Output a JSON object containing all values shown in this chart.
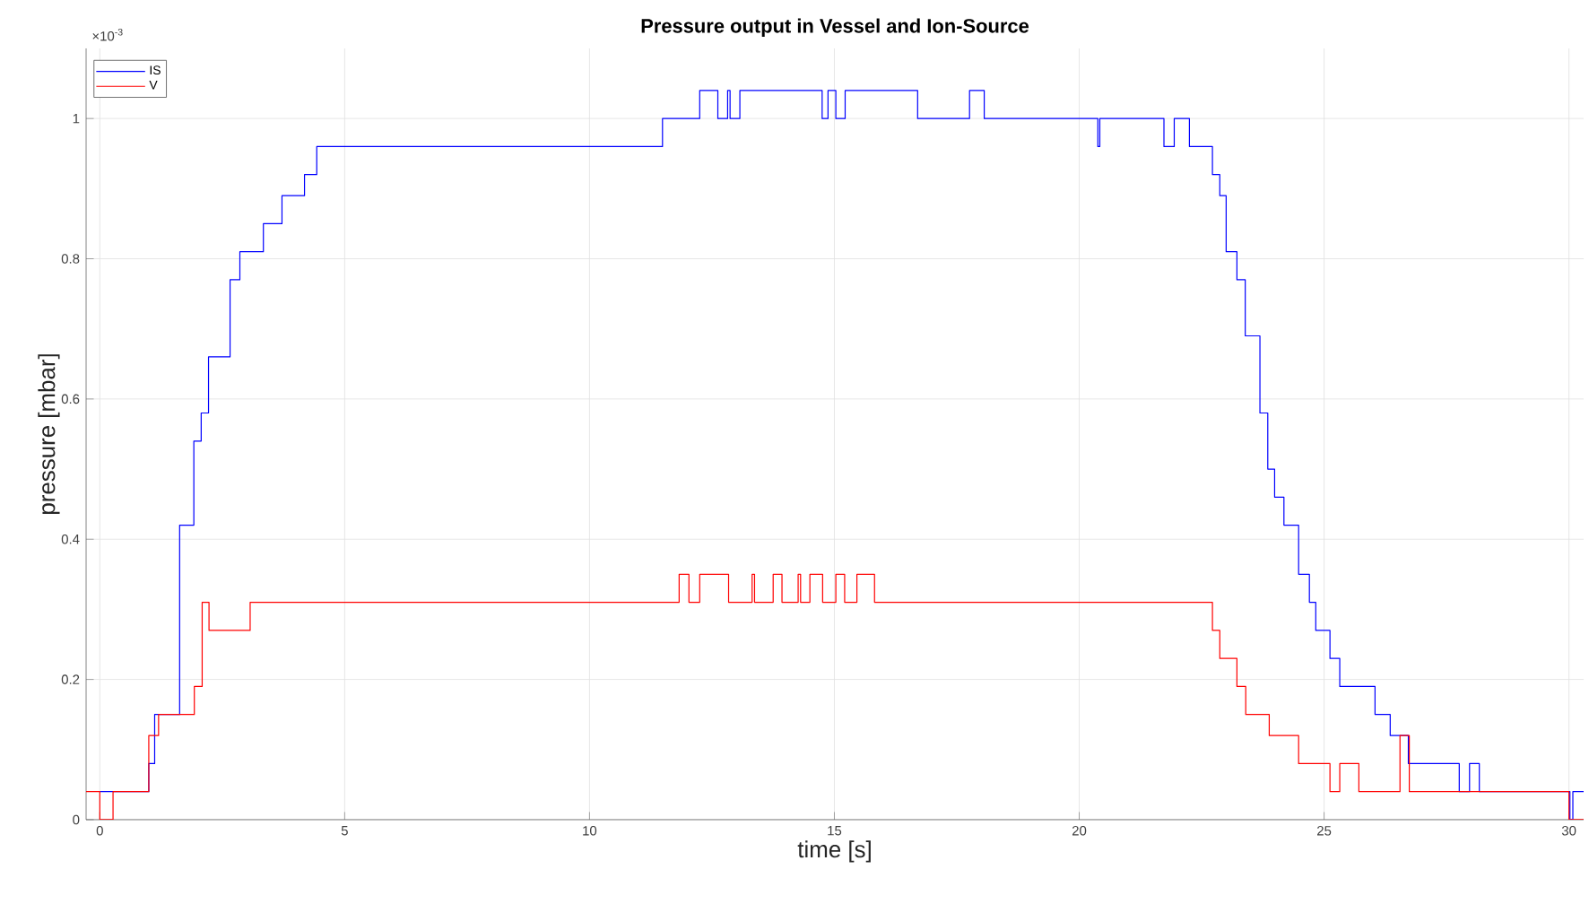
{
  "chart_data": {
    "type": "step",
    "title": "Pressure output in Vessel and Ion-Source",
    "xlabel": "time [s]",
    "ylabel": "pressure [mbar]",
    "annotations": [
      "×10$^{-3}$"
    ],
    "series": [
      {
        "name": "IS",
        "color": "#0000ff",
        "x": [
          0,
          1.0,
          1.12,
          1.63,
          1.92,
          2.07,
          2.22,
          2.66,
          2.86,
          3.34,
          3.72,
          4.18,
          4.43,
          11.49,
          12.25,
          12.62,
          12.82,
          12.87,
          13.07,
          14.75,
          14.87,
          15.03,
          15.22,
          16.7,
          17.76,
          18.06,
          20.38,
          20.42,
          21.73,
          21.94,
          22.25,
          22.72,
          22.87,
          23.0,
          23.22,
          23.39,
          23.69,
          23.85,
          23.99,
          24.18,
          24.48,
          24.7,
          24.83,
          25.12,
          25.32,
          26.04,
          26.35,
          26.72,
          27.76,
          27.97,
          28.17,
          30.02,
          30.08,
          30.3
        ],
        "values": [
          0.04,
          0.08,
          0.15,
          0.42,
          0.54,
          0.58,
          0.66,
          0.77,
          0.81,
          0.85,
          0.89,
          0.92,
          0.96,
          1.0,
          1.04,
          1.0,
          1.04,
          1.0,
          1.04,
          1.0,
          1.04,
          1.0,
          1.04,
          1.0,
          1.04,
          1.0,
          0.96,
          1.0,
          0.96,
          1.0,
          0.96,
          0.92,
          0.89,
          0.81,
          0.77,
          0.69,
          0.58,
          0.5,
          0.46,
          0.42,
          0.35,
          0.31,
          0.27,
          0.23,
          0.19,
          0.15,
          0.12,
          0.08,
          0.04,
          0.08,
          0.04,
          0,
          0.04,
          0.04
        ]
      },
      {
        "name": "V",
        "color": "#ff0000",
        "x": [
          -0.28,
          0,
          0.27,
          1.0,
          1.2,
          1.93,
          2.09,
          2.23,
          3.07,
          11.83,
          12.03,
          12.25,
          12.84,
          13.32,
          13.37,
          13.75,
          13.93,
          14.26,
          14.31,
          14.5,
          14.76,
          15.03,
          15.21,
          15.46,
          15.82,
          22.72,
          22.87,
          23.22,
          23.4,
          23.88,
          24.48,
          25.12,
          25.32,
          25.71,
          26.55,
          26.74,
          30.0,
          30.3
        ],
        "values": [
          0.04,
          0,
          0.04,
          0.12,
          0.15,
          0.19,
          0.31,
          0.27,
          0.31,
          0.35,
          0.31,
          0.35,
          0.31,
          0.35,
          0.31,
          0.35,
          0.31,
          0.35,
          0.31,
          0.35,
          0.31,
          0.35,
          0.31,
          0.35,
          0.31,
          0.27,
          0.23,
          0.19,
          0.15,
          0.12,
          0.08,
          0.04,
          0.08,
          0.04,
          0.12,
          0.04,
          0,
          0
        ]
      }
    ],
    "xlim": [
      -0.28,
      30.3
    ],
    "ylim": [
      0,
      1.1
    ],
    "xticks": [
      0,
      5,
      10,
      15,
      20,
      25,
      30
    ],
    "yticks": [
      0,
      0.2,
      0.4,
      0.6,
      0.8,
      1
    ],
    "grid": true,
    "legend": "top left"
  }
}
